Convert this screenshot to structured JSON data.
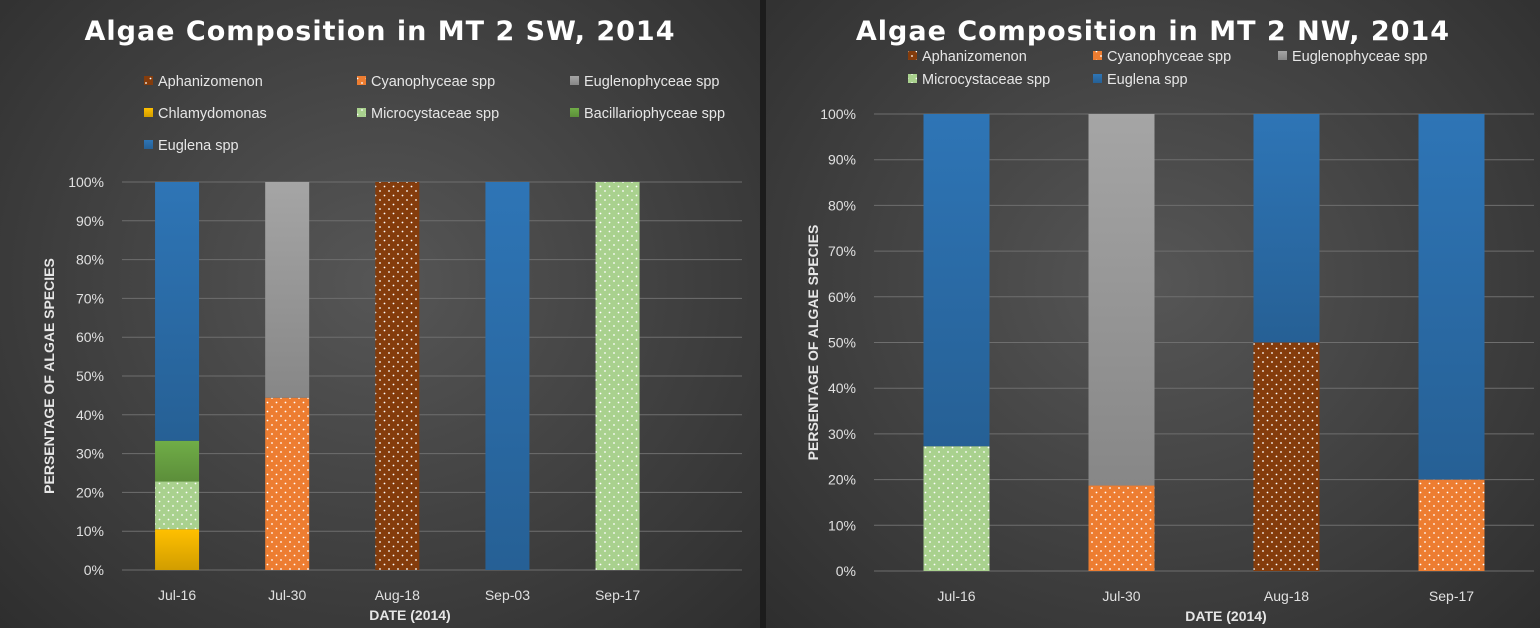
{
  "colors": {
    "Aphanizomenon": "#843c0c",
    "Cyanophyceae spp": "#ed7d31",
    "Euglenophyceae spp": "#a5a5a5",
    "Chlamydomonas": "#ffc000",
    "Microcystaceae spp": "#a9d18e",
    "Bacillariophyceae spp": "#70ad47",
    "Euglena spp": "#2e75b6"
  },
  "patterns": {
    "Aphanizomenon": "dots",
    "Cyanophyceae spp": "dots",
    "Microcystaceae spp": "dots"
  },
  "chart_data": [
    {
      "type": "bar",
      "stacked": true,
      "title": "Algae Composition in MT 2 SW, 2014",
      "xlabel": "DATE (2014)",
      "ylabel": "PERSENTAGE OF ALGAE SPECIES",
      "ylim": [
        0,
        100
      ],
      "yticks": [
        0,
        10,
        20,
        30,
        40,
        50,
        60,
        70,
        80,
        90,
        100
      ],
      "ytick_suffix": "%",
      "grid": true,
      "legend_position": "top",
      "categories": [
        "Jul-16",
        "Jul-30",
        "Aug-18",
        "Sep-03",
        "Sep-17"
      ],
      "legend": [
        "Aphanizomenon",
        "Cyanophyceae spp",
        "Euglenophyceae spp",
        "Chlamydomonas",
        "Microcystaceae spp",
        "Bacillariophyceae spp",
        "Euglena spp"
      ],
      "series": [
        {
          "name": "Chlamydomonas",
          "values": [
            10.5,
            0,
            0,
            0,
            0
          ]
        },
        {
          "name": "Microcystaceae spp",
          "values": [
            12.3,
            0,
            0,
            0,
            100
          ]
        },
        {
          "name": "Bacillariophyceae spp",
          "values": [
            10.5,
            0,
            0,
            0,
            0
          ]
        },
        {
          "name": "Cyanophyceae spp",
          "values": [
            0,
            44.4,
            0,
            0,
            0
          ]
        },
        {
          "name": "Aphanizomenon",
          "values": [
            0,
            0,
            100,
            0,
            0
          ]
        },
        {
          "name": "Euglenophyceae spp",
          "values": [
            0,
            55.6,
            0,
            0,
            0
          ]
        },
        {
          "name": "Euglena spp",
          "values": [
            66.7,
            0,
            0,
            100,
            0
          ]
        }
      ]
    },
    {
      "type": "bar",
      "stacked": true,
      "title": "Algae Composition in MT 2 NW, 2014",
      "xlabel": "DATE (2014)",
      "ylabel": "PERSENTAGE OF ALGAE SPECIES",
      "ylim": [
        0,
        100
      ],
      "yticks": [
        0,
        10,
        20,
        30,
        40,
        50,
        60,
        70,
        80,
        90,
        100
      ],
      "ytick_suffix": "%",
      "grid": true,
      "legend_position": "top",
      "categories": [
        "Jul-16",
        "Jul-30",
        "Aug-18",
        "Sep-17"
      ],
      "legend": [
        "Aphanizomenon",
        "Cyanophyceae spp",
        "Euglenophyceae spp",
        "Microcystaceae spp",
        "Euglena spp"
      ],
      "series": [
        {
          "name": "Microcystaceae spp",
          "values": [
            27.3,
            0,
            0,
            0
          ]
        },
        {
          "name": "Cyanophyceae spp",
          "values": [
            0,
            18.7,
            0,
            20
          ]
        },
        {
          "name": "Aphanizomenon",
          "values": [
            0,
            0,
            50,
            0
          ]
        },
        {
          "name": "Euglenophyceae spp",
          "values": [
            0,
            81.3,
            0,
            0
          ]
        },
        {
          "name": "Euglena spp",
          "values": [
            72.7,
            0,
            50,
            80
          ]
        }
      ]
    }
  ]
}
